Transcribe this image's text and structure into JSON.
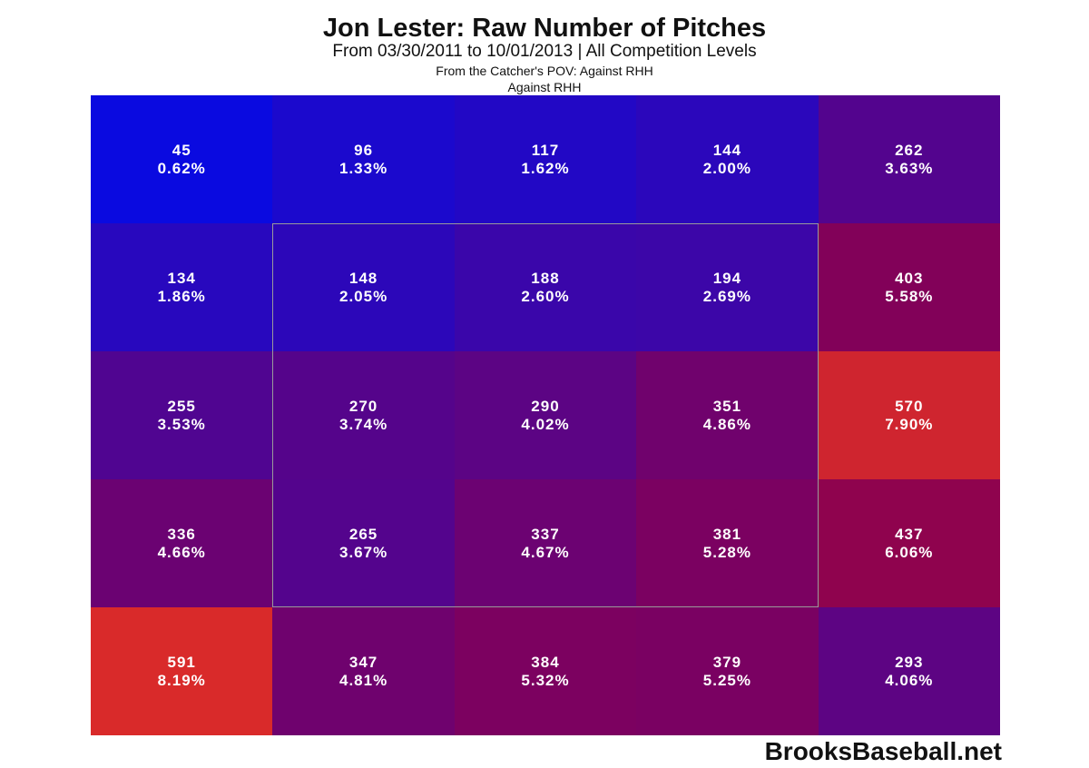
{
  "chart_data": {
    "type": "heatmap",
    "title": "Jon Lester: Raw Number of Pitches",
    "subtitle": "From 03/30/2011 to 10/01/2013 | All Competition Levels",
    "subtitle2": "From the Catcher's POV:   Against RHH",
    "subtitle3": "Against RHH",
    "rows": 5,
    "cols": 5,
    "counts": [
      [
        45,
        96,
        117,
        144,
        262
      ],
      [
        134,
        148,
        188,
        194,
        403
      ],
      [
        255,
        270,
        290,
        351,
        570
      ],
      [
        336,
        265,
        337,
        381,
        437
      ],
      [
        591,
        347,
        384,
        379,
        293
      ]
    ],
    "percents": [
      [
        "0.62%",
        "1.33%",
        "1.62%",
        "2.00%",
        "3.63%"
      ],
      [
        "1.86%",
        "2.05%",
        "2.60%",
        "2.69%",
        "5.58%"
      ],
      [
        "3.53%",
        "3.74%",
        "4.02%",
        "4.86%",
        "7.90%"
      ],
      [
        "4.66%",
        "3.67%",
        "4.67%",
        "5.28%",
        "6.06%"
      ],
      [
        "8.19%",
        "4.81%",
        "5.32%",
        "5.25%",
        "4.06%"
      ]
    ],
    "color_scale": {
      "low": "#0a0ae0",
      "mid": "#8a0050",
      "high": "#d92a2a"
    },
    "strike_zone": {
      "rows": [
        1,
        3
      ],
      "cols": [
        1,
        3
      ]
    }
  },
  "watermark": "BrooksBaseball.net"
}
